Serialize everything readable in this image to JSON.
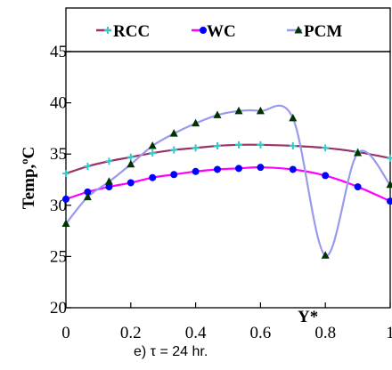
{
  "chart_data": {
    "type": "line",
    "xlabel": "Y*",
    "ylabel": "Temp,ºC",
    "xlim": [
      0,
      1
    ],
    "ylim": [
      20,
      45
    ],
    "xticks": [
      {
        "value": 0,
        "label": "0"
      },
      {
        "value": 0.2,
        "label": "0.2"
      },
      {
        "value": 0.4,
        "label": "0.4"
      },
      {
        "value": 0.6,
        "label": "0.6"
      },
      {
        "value": 0.8,
        "label": "0.8"
      },
      {
        "value": 1,
        "label": "1"
      }
    ],
    "yticks": [
      {
        "value": 20,
        "label": "20"
      },
      {
        "value": 25,
        "label": "25"
      },
      {
        "value": 30,
        "label": "30"
      },
      {
        "value": 35,
        "label": "35"
      },
      {
        "value": 40,
        "label": "40"
      },
      {
        "value": 45,
        "label": "45"
      }
    ],
    "grid": false,
    "legend_position": "top",
    "caption": "e) τ = 24 hr.",
    "series": [
      {
        "name": "RCC",
        "color": "#993366",
        "marker": "plus",
        "marker_color": "#33cccc",
        "x": [
          0,
          0.067,
          0.133,
          0.2,
          0.267,
          0.333,
          0.4,
          0.467,
          0.533,
          0.6,
          0.7,
          0.8,
          0.9,
          1.0
        ],
        "y": [
          33.1,
          33.8,
          34.3,
          34.7,
          35.1,
          35.4,
          35.6,
          35.8,
          35.9,
          35.9,
          35.8,
          35.6,
          35.2,
          34.6
        ]
      },
      {
        "name": "WC",
        "color": "#ff00ff",
        "marker": "circle",
        "marker_color": "#0000ff",
        "x": [
          0,
          0.067,
          0.133,
          0.2,
          0.267,
          0.333,
          0.4,
          0.467,
          0.533,
          0.6,
          0.7,
          0.8,
          0.9,
          1.0
        ],
        "y": [
          30.6,
          31.3,
          31.8,
          32.2,
          32.7,
          33.0,
          33.3,
          33.5,
          33.6,
          33.7,
          33.5,
          32.9,
          31.8,
          30.4
        ]
      },
      {
        "name": "PCM",
        "color": "#9999ee",
        "marker": "triangle",
        "marker_color": "#003300",
        "x": [
          0,
          0.067,
          0.133,
          0.2,
          0.267,
          0.333,
          0.4,
          0.467,
          0.533,
          0.6,
          0.7,
          0.8,
          0.9,
          1.0
        ],
        "y": [
          28.2,
          30.8,
          32.3,
          34.0,
          35.8,
          37.0,
          38.0,
          38.8,
          39.2,
          39.2,
          38.5,
          25.1,
          35.1,
          32.0
        ]
      }
    ]
  }
}
